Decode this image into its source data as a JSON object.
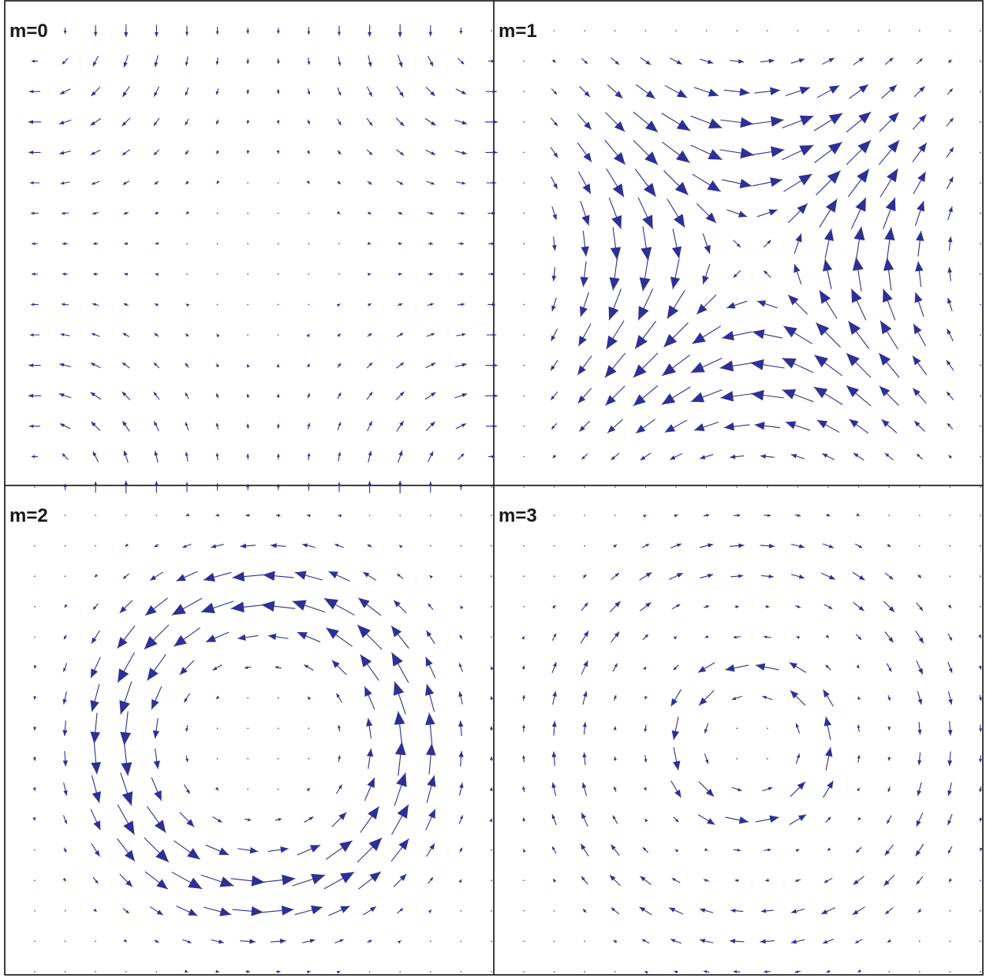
{
  "figure": {
    "panels": [
      {
        "label": "m=0",
        "mode": 0
      },
      {
        "label": "m=1",
        "mode": 1
      },
      {
        "label": "m=2",
        "mode": 2
      },
      {
        "label": "m=3",
        "mode": 3
      }
    ],
    "arrow_color": "#2f2f96",
    "frame_color": "#000000",
    "background": "#ffffff",
    "grid": {
      "rows": 16,
      "cols": 16
    }
  }
}
